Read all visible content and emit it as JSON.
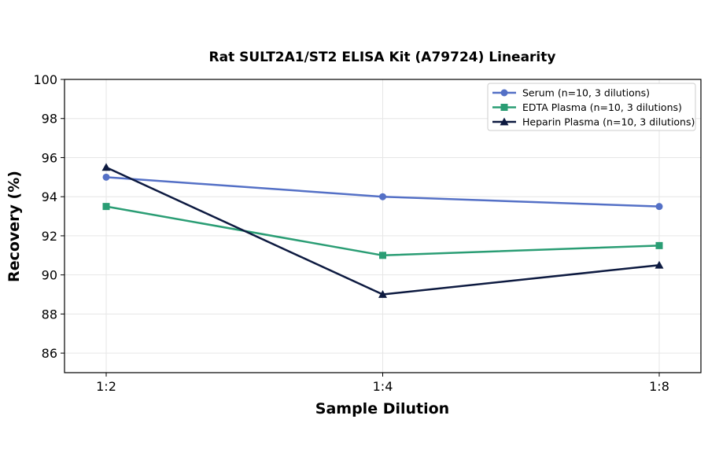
{
  "chart_data": {
    "type": "line",
    "title": "Rat SULT2A1/ST2 ELISA Kit (A79724) Linearity",
    "xlabel": "Sample Dilution",
    "ylabel": "Recovery (%)",
    "categories": [
      "1:2",
      "1:4",
      "1:8"
    ],
    "ylim": [
      85,
      100
    ],
    "yticks": [
      86,
      88,
      90,
      92,
      94,
      96,
      98,
      100
    ],
    "grid": true,
    "legend_position": "top-right",
    "series": [
      {
        "name": "Serum (n=10, 3 dilutions)",
        "values": [
          95.0,
          94.0,
          93.5
        ],
        "color": "#5470c6",
        "marker": "circle"
      },
      {
        "name": "EDTA Plasma (n=10, 3 dilutions)",
        "values": [
          93.5,
          91.0,
          91.5
        ],
        "color": "#2a9d74",
        "marker": "square"
      },
      {
        "name": "Heparin Plasma (n=10, 3 dilutions)",
        "values": [
          95.5,
          89.0,
          90.5
        ],
        "color": "#0d1a40",
        "marker": "triangle"
      }
    ]
  }
}
